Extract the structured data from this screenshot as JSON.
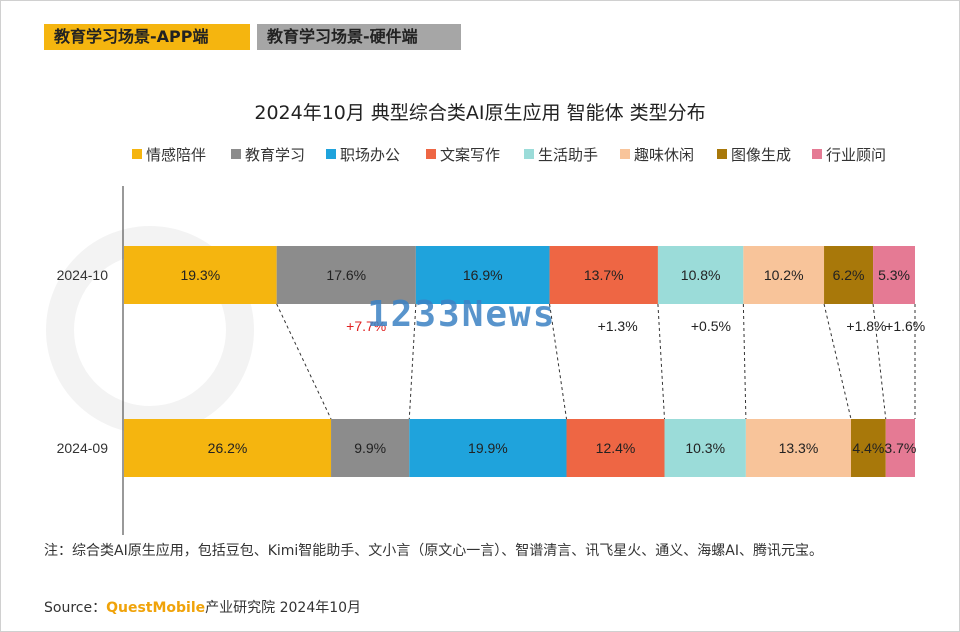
{
  "tabs": [
    {
      "label": "教育学习场景-APP端"
    },
    {
      "label": "教育学习场景-硬件端"
    }
  ],
  "watermark": "1233News",
  "footnote": "注：综合类AI原生应用，包括豆包、Kimi智能助手、文小言（原文心一言）、智谱清言、讯飞星火、通义、海螺AI、腾讯元宝。",
  "source": {
    "prefix": "Source：",
    "brand": "QuestMobile",
    "suffix": "产业研究院 2024年10月"
  },
  "chart_data": {
    "type": "bar",
    "orientation": "horizontal-stacked-100",
    "title": "2024年10月 典型综合类AI原生应用 智能体 类型分布",
    "categories": [
      "2024-10",
      "2024-09"
    ],
    "series": [
      {
        "name": "情感陪伴",
        "color": "#f5b50f",
        "values": [
          19.3,
          26.2
        ],
        "labels": [
          "19.3%",
          "26.2%"
        ]
      },
      {
        "name": "教育学习",
        "color": "#8c8c8c",
        "values": [
          17.6,
          9.9
        ],
        "labels": [
          "17.6%",
          "9.9%"
        ]
      },
      {
        "name": "职场办公",
        "color": "#1fa3dc",
        "values": [
          16.9,
          19.9
        ],
        "labels": [
          "16.9%",
          "19.9%"
        ]
      },
      {
        "name": "文案写作",
        "color": "#ee6644",
        "values": [
          13.7,
          12.4
        ],
        "labels": [
          "13.7%",
          "12.4%"
        ]
      },
      {
        "name": "生活助手",
        "color": "#9bdcd9",
        "values": [
          10.8,
          10.3
        ],
        "labels": [
          "10.8%",
          "10.3%"
        ]
      },
      {
        "name": "趣味休闲",
        "color": "#f8c49a",
        "values": [
          10.2,
          13.3
        ],
        "labels": [
          "10.2%",
          "13.3%"
        ]
      },
      {
        "name": "图像生成",
        "color": "#a8780a",
        "values": [
          6.2,
          4.4
        ],
        "labels": [
          "6.2%",
          "4.4%"
        ]
      },
      {
        "name": "行业顾问",
        "color": "#e57a94",
        "values": [
          5.3,
          3.7
        ],
        "labels": [
          "5.3%",
          "3.7%"
        ]
      }
    ],
    "changes": [
      {
        "series": "教育学习",
        "label": "+7.7%",
        "color": "#e02020"
      },
      {
        "series": "文案写作",
        "label": "+1.3%",
        "color": "#222222"
      },
      {
        "series": "生活助手",
        "label": "+0.5%",
        "color": "#222222"
      },
      {
        "series": "图像生成",
        "label": "+1.8%",
        "color": "#222222"
      },
      {
        "series": "行业顾问",
        "label": "+1.6%",
        "color": "#222222"
      }
    ],
    "legend_position": "top",
    "grid": false
  }
}
